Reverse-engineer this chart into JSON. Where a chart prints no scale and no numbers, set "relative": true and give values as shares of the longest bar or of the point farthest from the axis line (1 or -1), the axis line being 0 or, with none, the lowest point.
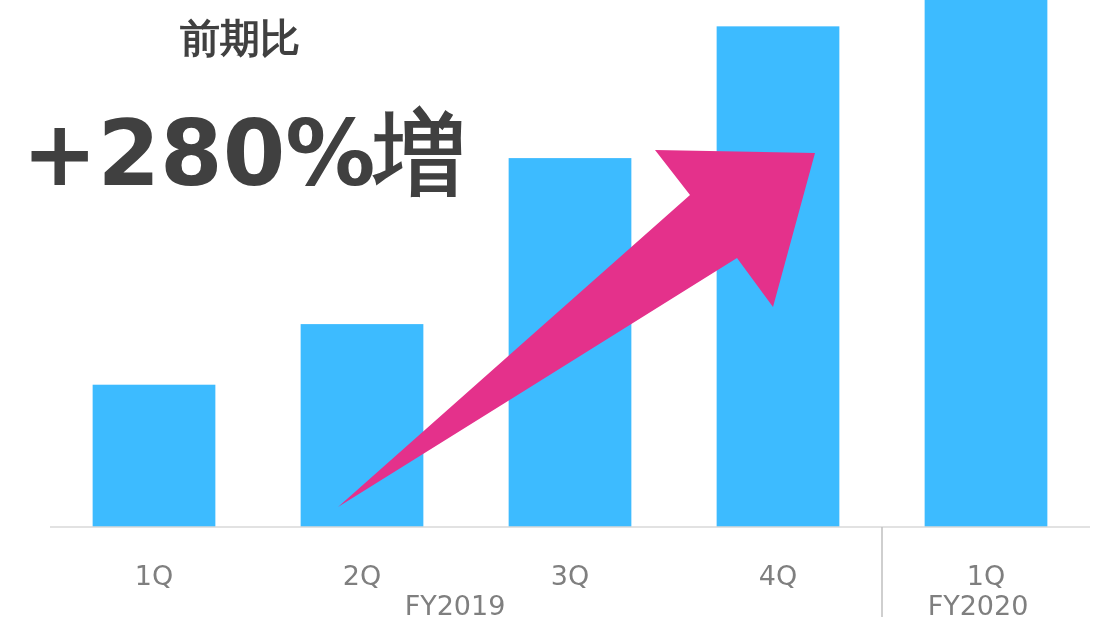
{
  "chart_data": {
    "type": "bar",
    "title": "前期比",
    "subtitle": "+280%増",
    "categories": [
      "1Q",
      "2Q",
      "3Q",
      "4Q",
      "1Q"
    ],
    "values": [
      0.27,
      0.385,
      0.7,
      0.95,
      1
    ],
    "color": "#3dbbff",
    "relative": true,
    "annotations": [
      "FY2019",
      "FY2020"
    ]
  }
}
